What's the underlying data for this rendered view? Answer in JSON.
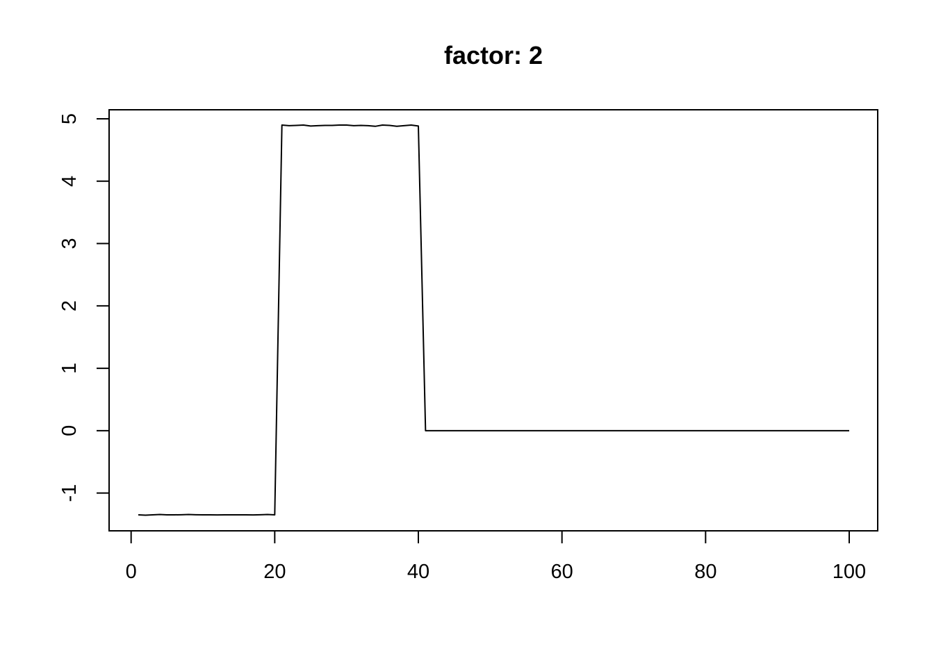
{
  "chart_data": {
    "type": "line",
    "title": "factor: 2",
    "xlabel": "",
    "ylabel": "",
    "xlim": [
      1,
      100
    ],
    "ylim": [
      -1.35,
      4.9
    ],
    "grid": false,
    "x_ticks": [
      0,
      20,
      40,
      60,
      80,
      100
    ],
    "x_tick_labels": [
      "0",
      "20",
      "40",
      "60",
      "80",
      "100"
    ],
    "y_ticks": [
      -1,
      0,
      1,
      2,
      3,
      4,
      5
    ],
    "y_tick_labels": [
      "-1",
      "0",
      "1",
      "2",
      "3",
      "4",
      "5"
    ],
    "series": [
      {
        "x": [
          1,
          2,
          3,
          4,
          5,
          6,
          7,
          8,
          9,
          10,
          11,
          12,
          13,
          14,
          15,
          16,
          17,
          18,
          19,
          20,
          21,
          22,
          23,
          24,
          25,
          26,
          27,
          28,
          29,
          30,
          31,
          32,
          33,
          34,
          35,
          36,
          37,
          38,
          39,
          40,
          41,
          42,
          43,
          44,
          45,
          46,
          47,
          48,
          49,
          50,
          51,
          52,
          53,
          54,
          55,
          56,
          57,
          58,
          59,
          60,
          61,
          62,
          63,
          64,
          65,
          66,
          67,
          68,
          69,
          70,
          71,
          72,
          73,
          74,
          75,
          76,
          77,
          78,
          79,
          80,
          81,
          82,
          83,
          84,
          85,
          86,
          87,
          88,
          89,
          90,
          91,
          92,
          93,
          94,
          95,
          96,
          97,
          98,
          99,
          100
        ],
        "values": [
          -1.35,
          -1.355,
          -1.35,
          -1.345,
          -1.35,
          -1.35,
          -1.348,
          -1.345,
          -1.348,
          -1.35,
          -1.35,
          -1.352,
          -1.35,
          -1.35,
          -1.35,
          -1.35,
          -1.352,
          -1.348,
          -1.345,
          -1.35,
          4.9,
          4.89,
          4.895,
          4.9,
          4.885,
          4.89,
          4.895,
          4.895,
          4.9,
          4.9,
          4.89,
          4.895,
          4.89,
          4.88,
          4.9,
          4.895,
          4.88,
          4.89,
          4.9,
          4.885,
          0.0,
          0.0,
          0.0,
          0.0,
          0.0,
          0.0,
          0.0,
          0.0,
          0.0,
          0.0,
          0.0,
          0.0,
          0.0,
          0.0,
          0.0,
          0.0,
          0.0,
          0.0,
          0.0,
          0.0,
          0.0,
          0.0,
          0.0,
          0.0,
          0.0,
          0.0,
          0.0,
          0.0,
          0.0,
          0.0,
          0.0,
          0.0,
          0.0,
          0.0,
          0.0,
          0.0,
          0.0,
          0.0,
          0.0,
          0.0,
          0.0,
          0.0,
          0.0,
          0.0,
          0.0,
          0.0,
          0.0,
          0.0,
          0.0,
          0.0,
          0.0,
          0.0,
          0.0,
          0.0,
          0.0,
          0.0,
          0.0,
          0.0,
          0.0,
          0.0
        ],
        "color": "#000000"
      }
    ]
  }
}
